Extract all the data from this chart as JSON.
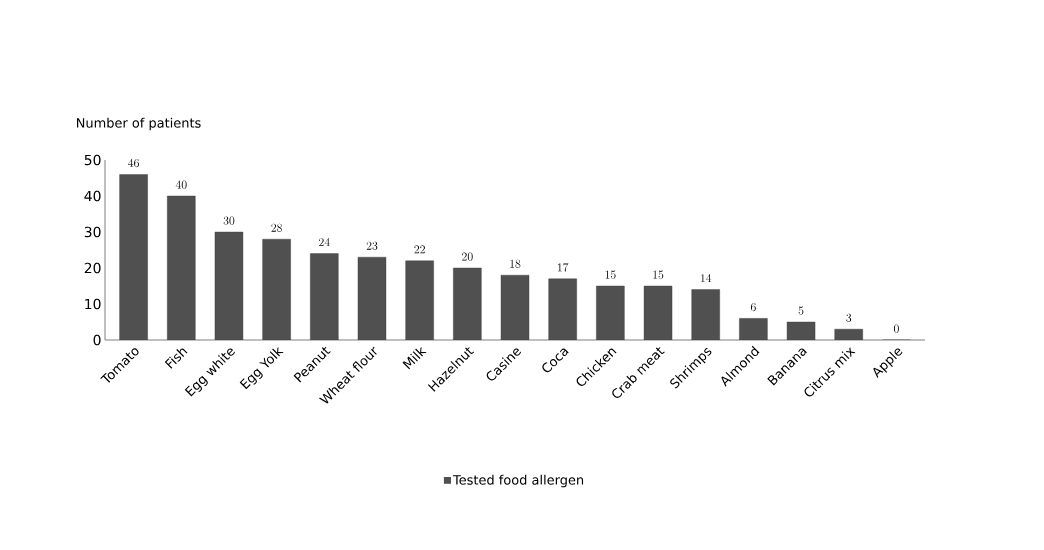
{
  "chart_data": {
    "type": "bar",
    "ylabel": "Number of patients",
    "categories": [
      "Tomato",
      "Fish",
      "Egg white",
      "Egg Yolk",
      "Peanut",
      "Wheat flour",
      "Milk",
      "Hazelnut",
      "Casine",
      "Coca",
      "Chicken",
      "Crab meat",
      "Shrimps",
      "Almond",
      "Banana",
      "Citrus mix",
      "Apple"
    ],
    "series": [
      {
        "name": "Tested food allergen",
        "color": "#505050",
        "values": [
          46,
          40,
          30,
          28,
          24,
          23,
          22,
          20,
          18,
          17,
          15,
          15,
          14,
          6,
          5,
          3,
          0
        ]
      }
    ],
    "ylim": [
      0,
      50
    ],
    "yticks": [
      0,
      10,
      20,
      30,
      40,
      50
    ],
    "grid": false,
    "legend": "bottom",
    "data_labels": true
  }
}
